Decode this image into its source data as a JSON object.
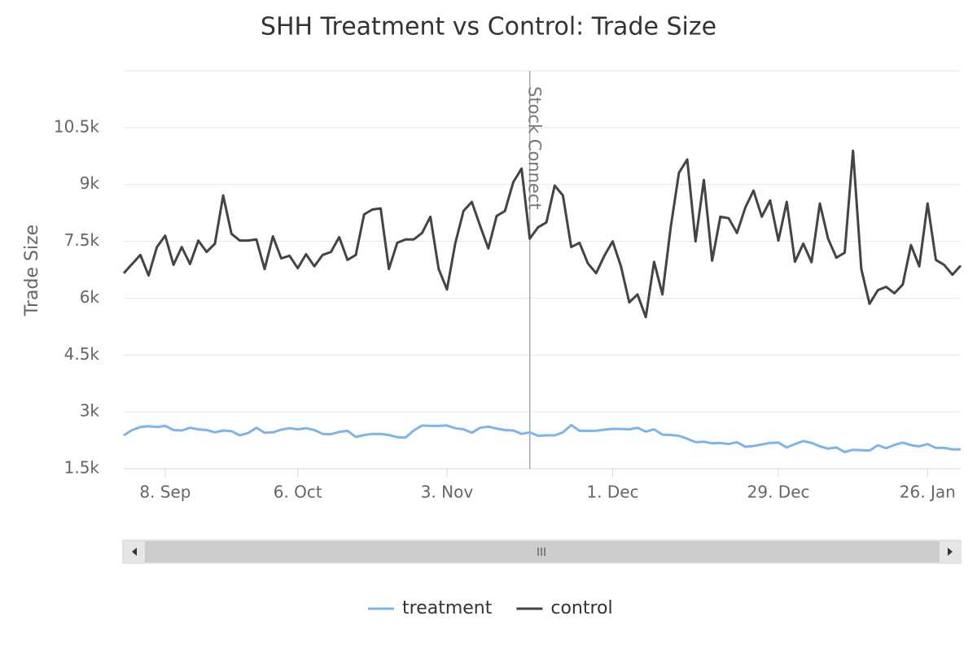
{
  "chart_data": {
    "type": "line",
    "title": "SHH Treatment vs Control: Trade Size",
    "y_label": "Trade Size",
    "categories": [
      null,
      null,
      null,
      null,
      null,
      "8. Sep",
      null,
      null,
      null,
      null,
      null,
      null,
      null,
      null,
      null,
      null,
      null,
      null,
      null,
      null,
      null,
      "6. Oct",
      null,
      null,
      null,
      null,
      null,
      null,
      null,
      null,
      null,
      null,
      null,
      null,
      null,
      null,
      null,
      null,
      null,
      "3. Nov",
      null,
      null,
      null,
      null,
      null,
      null,
      null,
      null,
      null,
      null,
      null,
      null,
      null,
      null,
      null,
      null,
      null,
      null,
      null,
      "1. Dec",
      null,
      null,
      null,
      null,
      null,
      null,
      null,
      null,
      null,
      null,
      null,
      null,
      null,
      null,
      null,
      null,
      null,
      null,
      null,
      "29. Dec",
      null,
      null,
      null,
      null,
      null,
      null,
      null,
      null,
      null,
      null,
      null,
      null,
      null,
      null,
      null,
      null,
      null,
      "26. Jan",
      null,
      null,
      null,
      null
    ],
    "series": [
      {
        "name": "treatment",
        "color": "#7cb5ec",
        "values": [
          2380,
          2520,
          2600,
          2620,
          2600,
          2630,
          2520,
          2510,
          2580,
          2540,
          2520,
          2460,
          2510,
          2490,
          2380,
          2440,
          2580,
          2450,
          2460,
          2530,
          2570,
          2540,
          2570,
          2520,
          2420,
          2410,
          2470,
          2500,
          2340,
          2390,
          2420,
          2420,
          2390,
          2330,
          2320,
          2510,
          2640,
          2630,
          2630,
          2640,
          2570,
          2540,
          2450,
          2580,
          2610,
          2560,
          2520,
          2510,
          2420,
          2460,
          2370,
          2380,
          2380,
          2460,
          2650,
          2500,
          2500,
          2500,
          2530,
          2550,
          2550,
          2540,
          2580,
          2480,
          2540,
          2400,
          2390,
          2370,
          2290,
          2200,
          2210,
          2170,
          2180,
          2150,
          2200,
          2080,
          2100,
          2140,
          2180,
          2190,
          2060,
          2150,
          2230,
          2180,
          2090,
          2030,
          2060,
          1940,
          2000,
          1990,
          1980,
          2120,
          2040,
          2130,
          2190,
          2120,
          2090,
          2150,
          2050,
          2050,
          2010,
          2010
        ]
      },
      {
        "name": "control",
        "color": "#434348",
        "values": [
          6660,
          6900,
          7140,
          6600,
          7350,
          7650,
          6880,
          7350,
          6900,
          7520,
          7220,
          7440,
          8710,
          7700,
          7520,
          7520,
          7550,
          6770,
          7630,
          7050,
          7120,
          6790,
          7160,
          6840,
          7140,
          7220,
          7610,
          7010,
          7140,
          8210,
          8340,
          8370,
          6770,
          7460,
          7550,
          7550,
          7720,
          8150,
          6770,
          6230,
          7440,
          8300,
          8540,
          7910,
          7310,
          8170,
          8300,
          9060,
          9420,
          7570,
          7870,
          8000,
          8970,
          8710,
          7350,
          7460,
          6920,
          6660,
          7120,
          7500,
          6840,
          5890,
          6100,
          5500,
          6960,
          6100,
          7870,
          9310,
          9660,
          7500,
          9120,
          6990,
          8150,
          8110,
          7720,
          8390,
          8840,
          8150,
          8580,
          7520,
          8540,
          6960,
          7440,
          6950,
          8500,
          7570,
          7070,
          7200,
          9890,
          6770,
          5850,
          6210,
          6300,
          6130,
          6360,
          7400,
          6840,
          8500,
          7010,
          6880,
          6620,
          6860
        ]
      }
    ],
    "plot_lines": [
      {
        "x": 49,
        "label": "Stock Connect"
      }
    ],
    "ylim": [
      1500,
      12000
    ],
    "yticks": [
      {
        "value": 1500,
        "label": "1.5k"
      },
      {
        "value": 3000,
        "label": "3k"
      },
      {
        "value": 4500,
        "label": "4.5k"
      },
      {
        "value": 6000,
        "label": "6k"
      },
      {
        "value": 7500,
        "label": "7.5k"
      },
      {
        "value": 9000,
        "label": "9k"
      },
      {
        "value": 10500,
        "label": "10.5k"
      }
    ],
    "grid": true,
    "legend": "bottom"
  }
}
